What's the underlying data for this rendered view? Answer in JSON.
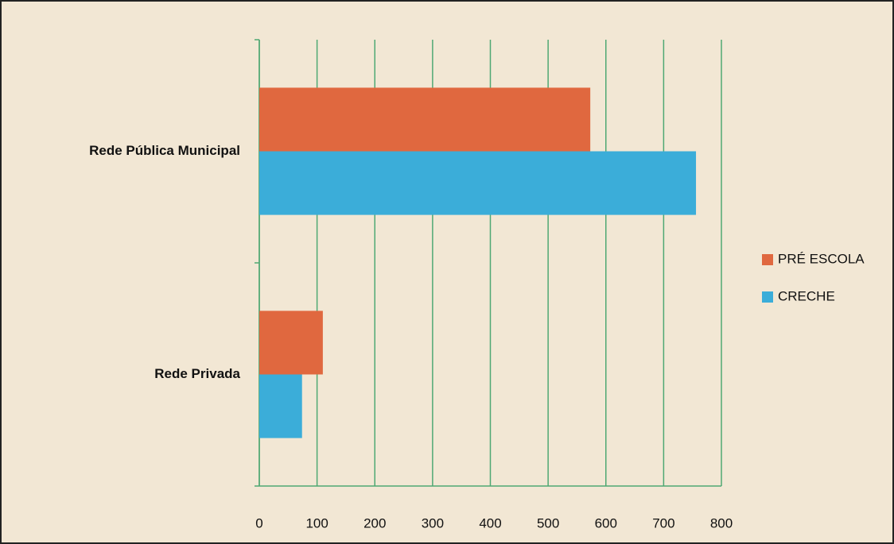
{
  "chart_data": {
    "type": "barh",
    "categories": [
      "Rede Pública Municipal",
      "Rede Privada"
    ],
    "series": [
      {
        "name": "PRÉ ESCOLA",
        "color": "#e0683f",
        "values": [
          573,
          110
        ]
      },
      {
        "name": "CRECHE",
        "color": "#3badd9",
        "values": [
          756,
          74
        ]
      }
    ],
    "xlim": [
      0,
      800
    ],
    "xticks": [
      0,
      100,
      200,
      300,
      400,
      500,
      600,
      700,
      800
    ],
    "grid": true,
    "legend": "right"
  }
}
